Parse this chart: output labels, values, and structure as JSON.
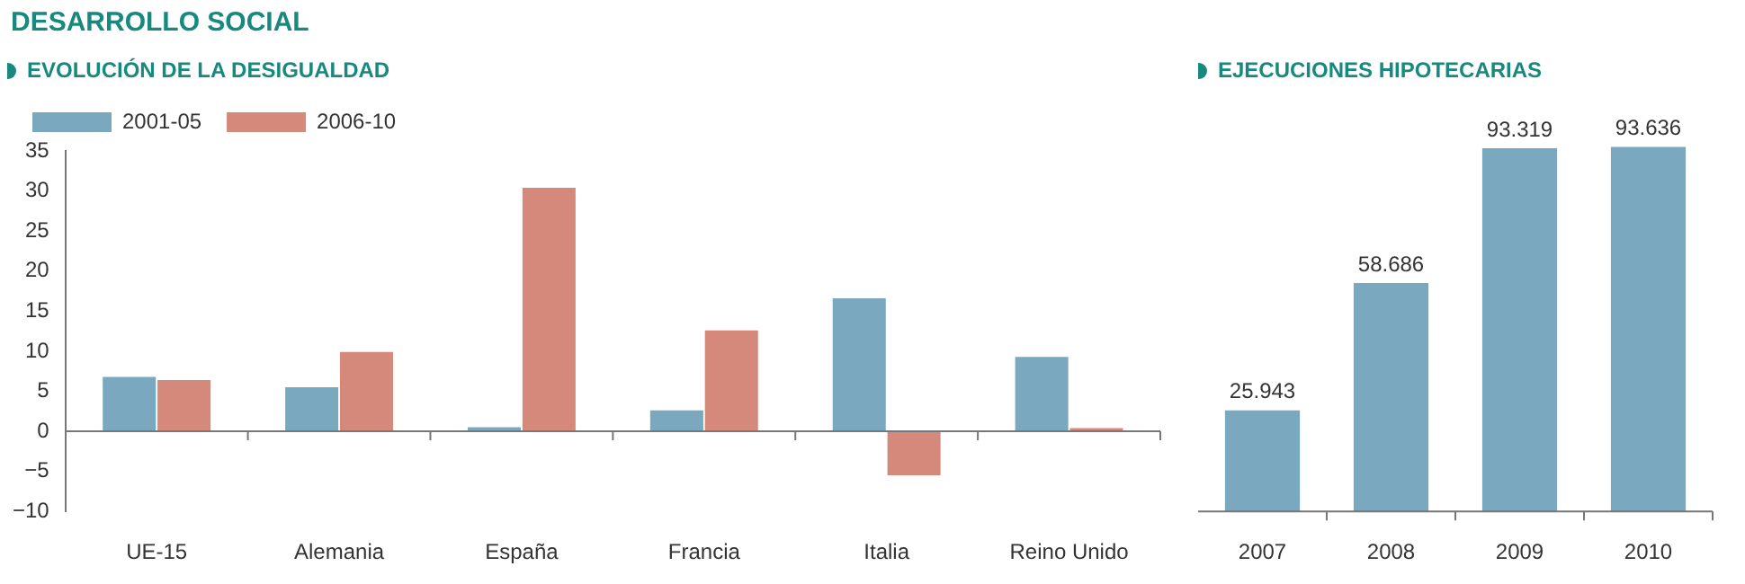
{
  "chart_data": [
    {
      "type": "bar",
      "title": "EVOLUCIÓN DE LA DESIGUALDAD",
      "annotations": [
        "DESARROLLO SOCIAL"
      ],
      "categories": [
        "UE-15",
        "Alemania",
        "España",
        "Francia",
        "Italia",
        "Reino Unido"
      ],
      "series": [
        {
          "name": "2001-05",
          "color": "#7aa9bf",
          "values": [
            6.8,
            5.5,
            0.5,
            2.6,
            16.6,
            9.3
          ]
        },
        {
          "name": "2006-10",
          "color": "#d4897a",
          "values": [
            6.4,
            9.9,
            30.4,
            12.6,
            -5.5,
            0.4
          ]
        }
      ],
      "ylim": [
        -10,
        35
      ],
      "yticks": [
        -10,
        -5,
        0,
        5,
        10,
        15,
        20,
        25,
        30,
        35
      ],
      "legend": "top left"
    },
    {
      "type": "bar",
      "title": "EJECUCIONES HIPOTECARIAS",
      "categories": [
        "2007",
        "2008",
        "2009",
        "2010"
      ],
      "values": [
        25943,
        58686,
        93319,
        93636
      ],
      "color": "#7aa9bf",
      "value_labels": [
        "25.943",
        "58.686",
        "93.319",
        "93.636"
      ],
      "tick_labels": "x"
    }
  ]
}
